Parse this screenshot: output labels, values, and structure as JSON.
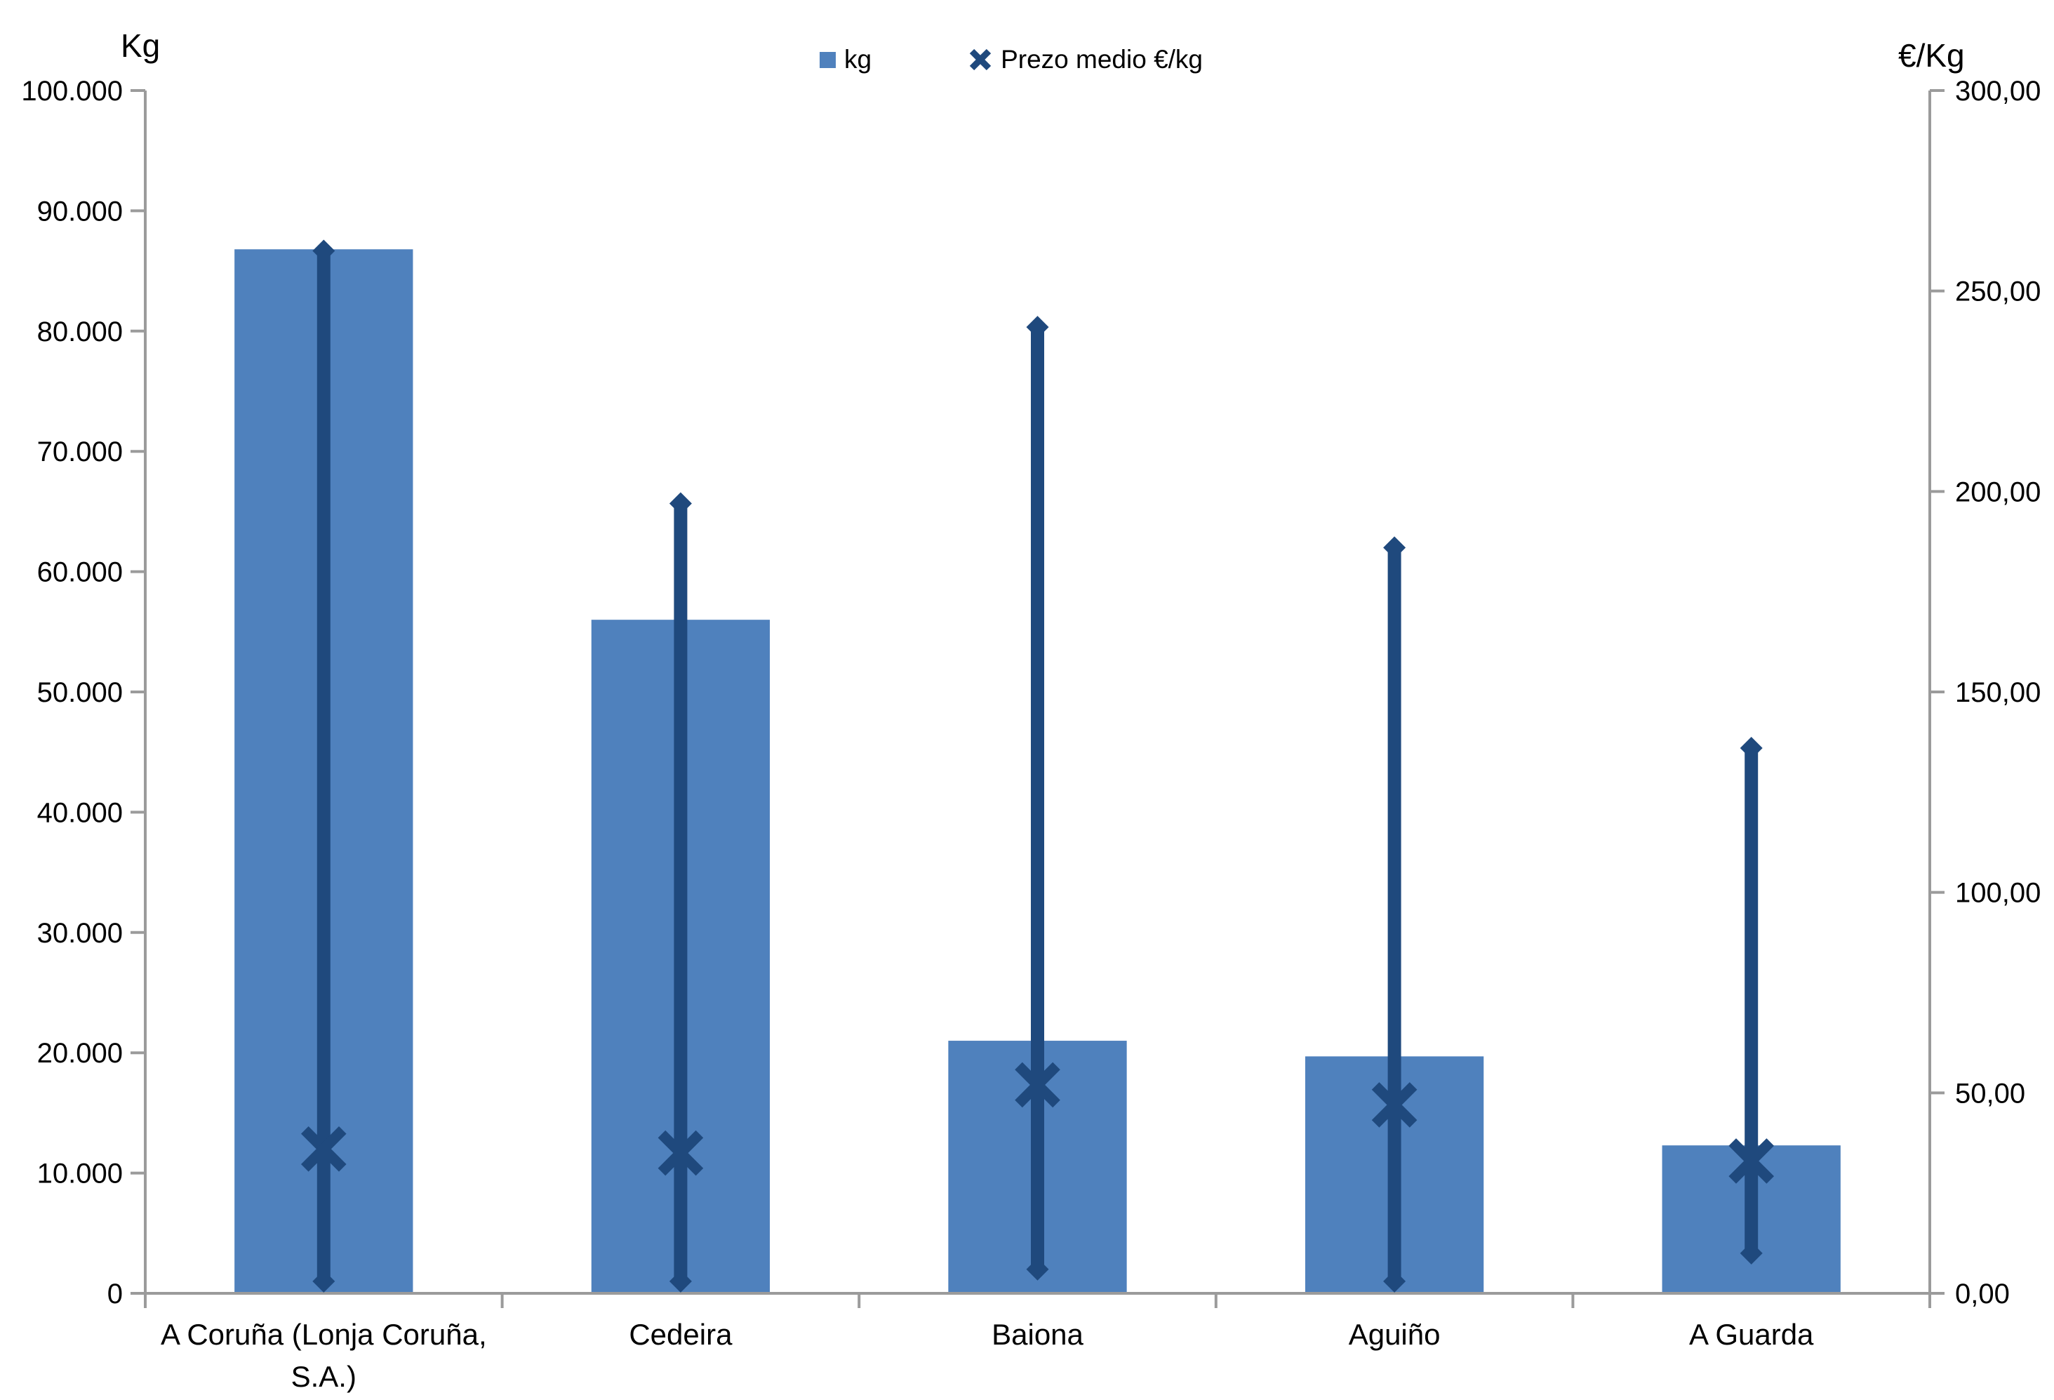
{
  "chart_data": {
    "type": "bar",
    "title": "",
    "categories": [
      "A Coruña (Lonja Coruña,\nS.A.)",
      "Cedeira",
      "Baiona",
      "Aguiño",
      "A Guarda"
    ],
    "series": [
      {
        "name": "kg",
        "type": "bar",
        "axis": "left",
        "values": [
          86800,
          56000,
          21000,
          19700,
          12300
        ],
        "color": "#4f81bd"
      },
      {
        "name": "Prezo medio €/kg",
        "type": "hilo-x",
        "axis": "right",
        "mean": [
          36,
          35,
          52,
          47,
          33
        ],
        "max": [
          260,
          197,
          241,
          186,
          136
        ],
        "min": [
          3,
          3,
          6,
          3,
          10
        ],
        "color": "#1f497d"
      }
    ],
    "axis_left": {
      "title": "Kg",
      "min": 0,
      "max": 100000,
      "tick_step": 10000,
      "tick_labels": [
        "100.000",
        "90.000",
        "80.000",
        "70.000",
        "60.000",
        "50.000",
        "40.000",
        "30.000",
        "20.000",
        "10.000",
        "0"
      ]
    },
    "axis_right": {
      "title": "€/Kg",
      "min": 0,
      "max": 300,
      "tick_step": 50,
      "tick_labels": [
        "300,00",
        "250,00",
        "200,00",
        "150,00",
        "100,00",
        "50,00",
        "0,00"
      ]
    },
    "legend": [
      {
        "label": "kg",
        "marker": "square",
        "color": "#4f81bd"
      },
      {
        "label": "Prezo medio €/kg",
        "marker": "x",
        "color": "#1f497d"
      }
    ],
    "grid": false,
    "legend_position": "top-center",
    "axis_line_color": "#9b9b9b",
    "text_color": "#000000"
  }
}
